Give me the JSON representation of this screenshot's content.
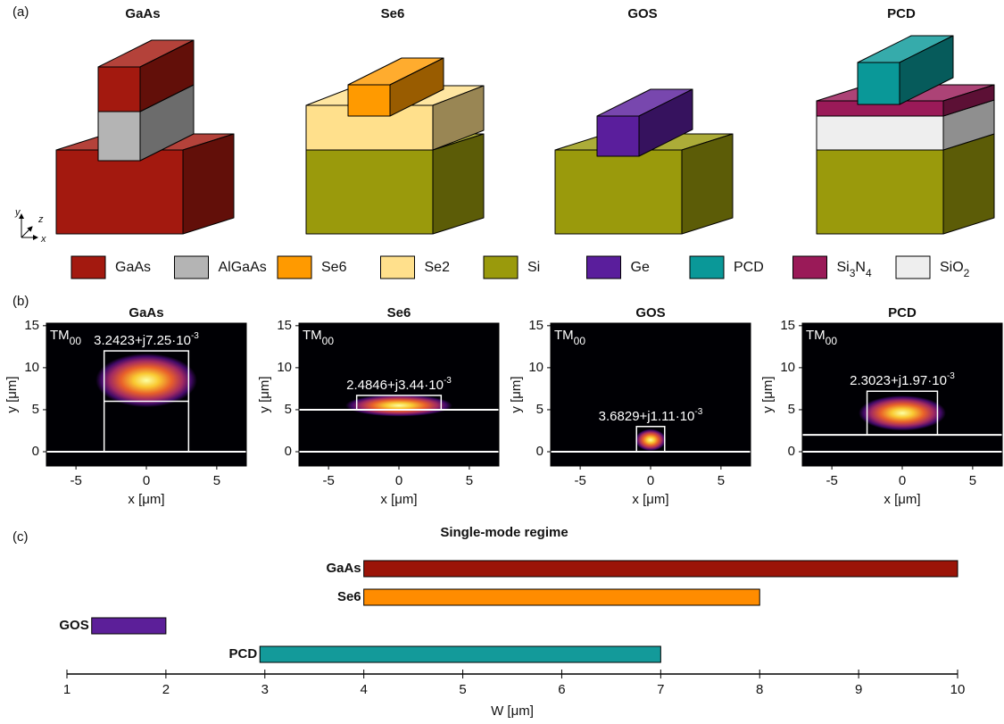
{
  "panel_labels": [
    "(a)",
    "(b)",
    "(c)"
  ],
  "structures": {
    "titles": [
      "GaAs",
      "Se6",
      "GOS",
      "PCD"
    ],
    "axes_glyph": [
      "y",
      "z",
      "x"
    ],
    "legend": [
      {
        "name": [
          "GaAs"
        ],
        "color": "#a3190f"
      },
      {
        "name": [
          "AlGaAs"
        ],
        "color": "#b4b4b4"
      },
      {
        "name": [
          "Se6"
        ],
        "color": "#ff9a00"
      },
      {
        "name": [
          "Se2"
        ],
        "color": "#ffe08c"
      },
      {
        "name": [
          "Si"
        ],
        "color": "#9a9a0c"
      },
      {
        "name": [
          "Ge"
        ],
        "color": "#5a1e9c"
      },
      {
        "name": [
          "PCD"
        ],
        "color": "#0a9898"
      },
      {
        "name": [
          "Si",
          "3",
          "N",
          "4"
        ],
        "color": "#9a1a58"
      },
      {
        "name": [
          "SiO",
          "2"
        ],
        "color": "#eeeeee"
      }
    ]
  },
  "chart_data": [
    {
      "type": "heatmap",
      "title": "GaAs",
      "mode": [
        "TM",
        "00"
      ],
      "index": [
        "3.2423+j7.25·10",
        "-3"
      ],
      "xlabel": "x [μm]",
      "ylabel": "y [μm]",
      "xlim": [
        -7.1,
        7.1
      ],
      "ylim": [
        -1.7,
        15.3
      ],
      "xticks": [
        -5,
        0,
        5
      ],
      "yticks": [
        0,
        5,
        10,
        15
      ],
      "interfaces": [
        0
      ],
      "core": {
        "x": [
          -3,
          3
        ],
        "y": [
          0,
          12
        ]
      },
      "core_lines": [
        6
      ],
      "field": {
        "x": 0,
        "y": 8.5,
        "rx": 3.6,
        "ry": 3.2
      }
    },
    {
      "type": "heatmap",
      "title": "Se6",
      "mode": [
        "TM",
        "00"
      ],
      "index": [
        "2.4846+j3.44·10",
        "-3"
      ],
      "xlabel": "x [μm]",
      "ylabel": "y [μm]",
      "xlim": [
        -7.1,
        7.1
      ],
      "ylim": [
        -1.7,
        15.3
      ],
      "xticks": [
        -5,
        0,
        5
      ],
      "yticks": [
        0,
        5,
        10,
        15
      ],
      "interfaces": [
        0,
        5
      ],
      "core": {
        "x": [
          -3,
          3
        ],
        "y": [
          5,
          6.7
        ]
      },
      "core_lines": [],
      "field": {
        "x": 0,
        "y": 5.5,
        "rx": 3.8,
        "ry": 1.3
      }
    },
    {
      "type": "heatmap",
      "title": "GOS",
      "mode": [
        "TM",
        "00"
      ],
      "index": [
        "3.6829+j1.11·10",
        "-3"
      ],
      "xlabel": "x [μm]",
      "ylabel": "y [μm]",
      "xlim": [
        -7.1,
        7.1
      ],
      "ylim": [
        -1.7,
        15.3
      ],
      "xticks": [
        -5,
        0,
        5
      ],
      "yticks": [
        0,
        5,
        10,
        15
      ],
      "interfaces": [
        0
      ],
      "core": {
        "x": [
          -1,
          1
        ],
        "y": [
          0,
          3
        ]
      },
      "core_lines": [],
      "field": {
        "x": 0,
        "y": 1.4,
        "rx": 1.1,
        "ry": 1.3
      }
    },
    {
      "type": "heatmap",
      "title": "PCD",
      "mode": [
        "TM",
        "00"
      ],
      "index": [
        "2.3023+j1.97·10",
        "-3"
      ],
      "xlabel": "x [μm]",
      "ylabel": "y [μm]",
      "xlim": [
        -7.1,
        7.1
      ],
      "ylim": [
        -1.7,
        15.3
      ],
      "xticks": [
        -5,
        0,
        5
      ],
      "yticks": [
        0,
        5,
        10,
        15
      ],
      "interfaces": [
        0,
        2
      ],
      "core": {
        "x": [
          -2.5,
          2.5
        ],
        "y": [
          2,
          7.2
        ]
      },
      "core_lines": [],
      "field": {
        "x": 0,
        "y": 4.6,
        "rx": 3.1,
        "ry": 2.1
      }
    },
    {
      "type": "range_bar",
      "title": "Single-mode regime",
      "xlabel": "W [μm]",
      "categories": [
        "GaAs",
        "Se6",
        "GOS",
        "PCD"
      ],
      "starts": [
        4,
        4,
        1.25,
        2.95
      ],
      "ends": [
        10,
        8,
        2,
        7
      ],
      "colors": [
        "#9b1408",
        "#ff8c00",
        "#5c1f99",
        "#139a9a"
      ],
      "xlim": [
        1,
        10
      ],
      "xticks": [
        1,
        2,
        3,
        4,
        5,
        6,
        7,
        8,
        9,
        10
      ]
    }
  ]
}
